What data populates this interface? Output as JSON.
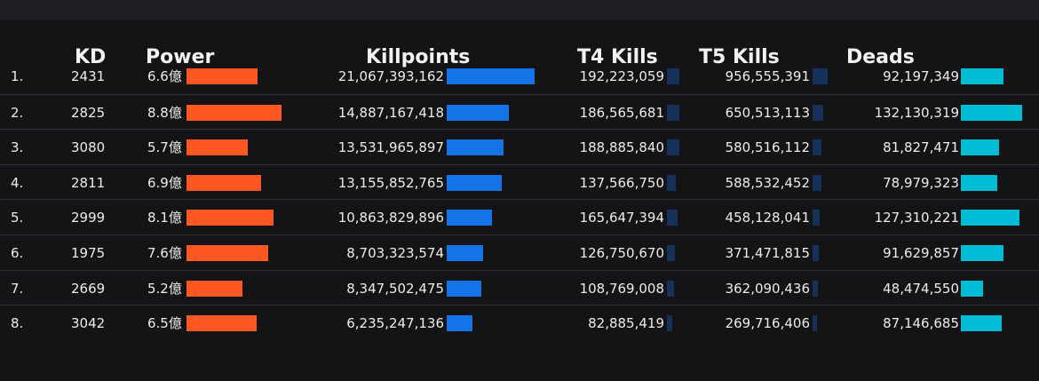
{
  "colors": {
    "power_bar": "#ff5722",
    "killpoints_bar": "#1473e6",
    "kills_bar": "#16325a",
    "deads_bar": "#00bcd4",
    "background": "#141417"
  },
  "headers": {
    "kd": "KD",
    "power": "Power",
    "killpoints": "Killpoints",
    "t4": "T4 Kills",
    "t5": "T5 Kills",
    "deads": "Deads"
  },
  "rows": [
    {
      "rank": "1.",
      "kd": "2431",
      "power": "6.6億",
      "power_value": 6.6,
      "killpoints": "21,067,393,162",
      "killpoints_value": 21067393162,
      "t4": "192,223,059",
      "t4_value": 192223059,
      "t5": "956,555,391",
      "t5_value": 956555391,
      "deads": "92,197,349",
      "deads_value": 92197349
    },
    {
      "rank": "2.",
      "kd": "2825",
      "power": "8.8億",
      "power_value": 8.8,
      "killpoints": "14,887,167,418",
      "killpoints_value": 14887167418,
      "t4": "186,565,681",
      "t4_value": 186565681,
      "t5": "650,513,113",
      "t5_value": 650513113,
      "deads": "132,130,319",
      "deads_value": 132130319
    },
    {
      "rank": "3.",
      "kd": "3080",
      "power": "5.7億",
      "power_value": 5.7,
      "killpoints": "13,531,965,897",
      "killpoints_value": 13531965897,
      "t4": "188,885,840",
      "t4_value": 188885840,
      "t5": "580,516,112",
      "t5_value": 580516112,
      "deads": "81,827,471",
      "deads_value": 81827471
    },
    {
      "rank": "4.",
      "kd": "2811",
      "power": "6.9億",
      "power_value": 6.9,
      "killpoints": "13,155,852,765",
      "killpoints_value": 13155852765,
      "t4": "137,566,750",
      "t4_value": 137566750,
      "t5": "588,532,452",
      "t5_value": 588532452,
      "deads": "78,979,323",
      "deads_value": 78979323
    },
    {
      "rank": "5.",
      "kd": "2999",
      "power": "8.1億",
      "power_value": 8.1,
      "killpoints": "10,863,829,896",
      "killpoints_value": 10863829896,
      "t4": "165,647,394",
      "t4_value": 165647394,
      "t5": "458,128,041",
      "t5_value": 458128041,
      "deads": "127,310,221",
      "deads_value": 127310221
    },
    {
      "rank": "6.",
      "kd": "1975",
      "power": "7.6億",
      "power_value": 7.6,
      "killpoints": "8,703,323,574",
      "killpoints_value": 8703323574,
      "t4": "126,750,670",
      "t4_value": 126750670,
      "t5": "371,471,815",
      "t5_value": 371471815,
      "deads": "91,629,857",
      "deads_value": 91629857
    },
    {
      "rank": "7.",
      "kd": "2669",
      "power": "5.2億",
      "power_value": 5.2,
      "killpoints": "8,347,502,475",
      "killpoints_value": 8347502475,
      "t4": "108,769,008",
      "t4_value": 108769008,
      "t5": "362,090,436",
      "t5_value": 362090436,
      "deads": "48,474,550",
      "deads_value": 48474550
    },
    {
      "rank": "8.",
      "kd": "3042",
      "power": "6.5億",
      "power_value": 6.5,
      "killpoints": "6,235,247,136",
      "killpoints_value": 6235247136,
      "t4": "82,885,419",
      "t4_value": 82885419,
      "t5": "269,716,406",
      "t5_value": 269716406,
      "deads": "87,146,685",
      "deads_value": 87146685
    }
  ]
}
